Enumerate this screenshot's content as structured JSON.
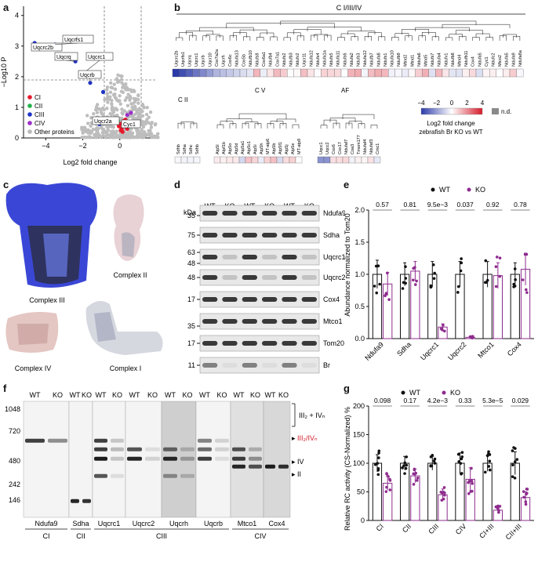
{
  "panels": {
    "a": "a",
    "b": "b",
    "c": "c",
    "d": "d",
    "e": "e",
    "f": "f",
    "g": "g"
  },
  "panel_a": {
    "ylabel": "−Log10 P",
    "xlabel": "Log2 fold change",
    "legend": [
      {
        "label": "CI",
        "color": "#e8192c"
      },
      {
        "label": "CII",
        "color": "#22b24c"
      },
      {
        "label": "CIII",
        "color": "#1f33c7"
      },
      {
        "label": "CIV",
        "color": "#9b2fc9"
      },
      {
        "label": "Other proteins",
        "color": "#b8b8b8"
      }
    ],
    "callouts": [
      "Uqcrc2b",
      "Uqcrfs1",
      "Uqcrq",
      "Uqcrc1",
      "Uqcrb",
      "Uqcr2a",
      "Cyc1"
    ]
  },
  "chart_data": [
    {
      "type": "scatter",
      "title": "",
      "xlabel": "Log2 fold change",
      "ylabel": "−Log10 P",
      "xlim": [
        -5.2,
        2.0
      ],
      "ylim": [
        0,
        4.3
      ],
      "xticks": [
        -4,
        -2,
        0
      ],
      "yticks": [
        0,
        1,
        2,
        3,
        4
      ],
      "series": [
        {
          "name": "CIII",
          "color": "#1f33c7",
          "points": [
            [
              -4.6,
              3.1
            ],
            [
              -3.5,
              3.05
            ],
            [
              -2.4,
              2.5
            ],
            [
              -2.0,
              2.1
            ],
            [
              -1.6,
              1.8
            ],
            [
              -1.1,
              0.45
            ],
            [
              -0.9,
              1.5
            ]
          ]
        },
        {
          "name": "CI",
          "color": "#e8192c",
          "points": [
            [
              0.0,
              0.45
            ],
            [
              0.15,
              0.5
            ],
            [
              0.25,
              0.42
            ],
            [
              0.35,
              0.35
            ],
            [
              0.1,
              0.3
            ],
            [
              0.2,
              0.55
            ],
            [
              0.3,
              0.6
            ],
            [
              0.05,
              0.25
            ],
            [
              0.4,
              0.3
            ],
            [
              0.15,
              0.2
            ],
            [
              -0.05,
              0.38
            ]
          ]
        },
        {
          "name": "CII",
          "color": "#22b24c",
          "points": [
            [
              -0.1,
              0.55
            ]
          ]
        },
        {
          "name": "CIV",
          "color": "#9b2fc9",
          "points": [
            [
              0.6,
              0.82
            ],
            [
              0.4,
              0.75
            ],
            [
              -0.4,
              0.6
            ]
          ]
        }
      ]
    },
    {
      "type": "bar",
      "title": "",
      "ylabel": "Abundance normalized to Tom20",
      "categories": [
        "Ndufa9",
        "Sdha",
        "Uqcrc1",
        "Uqcrc2",
        "Mtco1",
        "Cox4"
      ],
      "ylim": [
        0,
        2.0
      ],
      "yticks": [
        0.0,
        0.5,
        1.0,
        1.5,
        2.0
      ],
      "pvalues": [
        "0.57",
        "0.81",
        "9.5e−3",
        "0.037",
        "0.92",
        "0.78"
      ],
      "series": [
        {
          "name": "WT",
          "color": "#111111",
          "values": [
            1.0,
            1.0,
            1.0,
            1.0,
            1.0,
            1.0
          ],
          "err": [
            0.22,
            0.18,
            0.2,
            0.2,
            0.2,
            0.18
          ]
        },
        {
          "name": "KO",
          "color": "#8e2c8e",
          "values": [
            0.85,
            1.05,
            0.18,
            0.02,
            0.98,
            1.08
          ],
          "err": [
            0.18,
            0.15,
            0.05,
            0.01,
            0.2,
            0.25
          ]
        }
      ]
    },
    {
      "type": "bar",
      "title": "",
      "ylabel": "Relative RC activity (CS-Normalized) %",
      "categories": [
        "CI",
        "CII",
        "CIII",
        "CIV",
        "CI+III",
        "CII+III"
      ],
      "ylim": [
        0,
        200
      ],
      "yticks": [
        0,
        50,
        100,
        150,
        200
      ],
      "pvalues": [
        "0.098",
        "0.17",
        "4.2e−3",
        "0.33",
        "5.3e−5",
        "0.029"
      ],
      "series": [
        {
          "name": "WT",
          "color": "#111111",
          "values": [
            100,
            100,
            100,
            100,
            100,
            100
          ],
          "err": [
            15,
            12,
            12,
            18,
            14,
            20
          ]
        },
        {
          "name": "KO",
          "color": "#8e2c8e",
          "values": [
            65,
            78,
            45,
            72,
            18,
            40
          ],
          "err": [
            12,
            12,
            10,
            20,
            6,
            10
          ]
        }
      ]
    }
  ],
  "panel_b": {
    "title": "C I/III/IV",
    "genes_main": [
      "Uqcrc2b",
      "Uqcrfs1",
      "Uqcrq",
      "Uqcrc1",
      "Uqcrb",
      "Uqcr10",
      "Cox7a2a",
      "Uqcrh",
      "Cox6c",
      "Ndufa13",
      "Cox5b",
      "Ndufb10",
      "Ndufs8",
      "Cox6a1",
      "Ndufb4",
      "Cox7a1",
      "Ndufs2",
      "Ndufb3",
      "Ndufv2",
      "Uqcr11",
      "Ndufa12",
      "Ndufs4",
      "Ndufa1a",
      "Ndufs5",
      "Ndufa11",
      "Ndufs6",
      "Ndufa2",
      "Ndufs3",
      "Ndufa12",
      "Ndufb7",
      "Ndufa8",
      "Ndufs1",
      "Ndufa10",
      "Ndufb9",
      "Mtnd2",
      "Mtnd1",
      "Ndufa6",
      "Mtnd5",
      "Ndufs7",
      "Ndufa4",
      "Ndufv1",
      "Ndufb8",
      "Mtnd4",
      "Ndufb11",
      "Cox4",
      "Ndufa5",
      "Cyc1",
      "Ndufc2",
      "Mtco2",
      "Ndufa5",
      "Ndufa9",
      "Ndufa8a"
    ],
    "cii_title": "C II",
    "cii_genes": [
      "Sdhb",
      "Sdha",
      "Sdhc",
      "Sdhb"
    ],
    "cv_title": "C V",
    "cv_genes": [
      "Atp5l",
      "Atpf1b",
      "Atp5o",
      "Atp5d",
      "Atp5a1",
      "Atp5c1",
      "Atp5i",
      "Atp5h",
      "MT-atp6",
      "Atp5b",
      "Atp5f1",
      "Atp5j",
      "Atp5e",
      "MT-atp8"
    ],
    "af_title": "AF",
    "af_genes": [
      "Uqcc1",
      "Uqcc2",
      "Cox6",
      "Cox17",
      "Ndufaf7",
      "Coa3",
      "Tmem177",
      "Ndufaf4",
      "Ndufaf3",
      "Cmc1"
    ],
    "scale_ticks": [
      "−4",
      "−2",
      "0",
      "2",
      "4"
    ],
    "scale_label": "Log2 fold change",
    "scale_sublabel": "zebrafish Br KO vs WT",
    "nd_label": "n.d."
  },
  "panel_c": {
    "labels": [
      "Complex III",
      "Complex II",
      "Complex IV",
      "Complex I"
    ]
  },
  "panel_d": {
    "kda": "kDa",
    "lanes": [
      "WT",
      "KO",
      "WT",
      "KO",
      "WT",
      "KO"
    ],
    "markers": [
      "35",
      "75",
      "63",
      "48",
      "48",
      "17",
      "35",
      "17",
      "11"
    ],
    "rows": [
      "Ndufa9",
      "Sdha",
      "Uqcrc1",
      "Uqcrc2",
      "Cox4",
      "Mtco1",
      "Tom20",
      "Br"
    ],
    "groups": [
      "CI",
      "CII",
      "CIII",
      "CIV"
    ]
  },
  "panel_f": {
    "markers": [
      "1048",
      "720",
      "480",
      "242",
      "146"
    ],
    "antibodies": [
      "Ndufa9",
      "Sdha",
      "Uqcrc1",
      "Uqcrc2",
      "Uqcrh",
      "Uqcrb",
      "Mtco1",
      "Cox4"
    ],
    "lane_pair": [
      "WT",
      "KO"
    ],
    "complex_groups": [
      "CI",
      "CII",
      "CIII",
      "CIV"
    ],
    "band_labels": {
      "b1": "III₂ + IVₙ",
      "b2": "III₂/IVₙ",
      "b3": "IV",
      "b4": "II"
    }
  },
  "legend_wtko": {
    "wt": "WT",
    "ko": "KO"
  }
}
